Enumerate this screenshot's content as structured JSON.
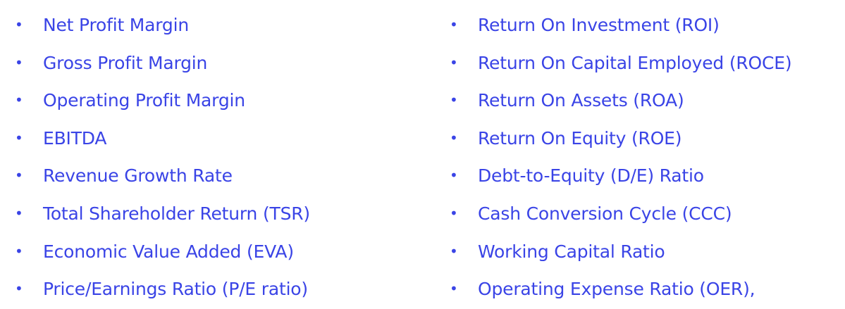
{
  "colors": {
    "text": "#3a44e6",
    "background": "#ffffff"
  },
  "bullet_glyph": "•",
  "left_column": [
    "Net Profit Margin",
    "Gross Profit Margin",
    "Operating Profit Margin",
    "EBITDA",
    "Revenue Growth Rate",
    "Total Shareholder Return (TSR)",
    "Economic Value Added (EVA)",
    "Price/Earnings Ratio (P/E ratio)"
  ],
  "right_column": [
    "Return On Investment (ROI)",
    "Return On Capital Employed (ROCE)",
    "Return On Assets (ROA)",
    "Return On Equity (ROE)",
    "Debt-to-Equity (D/E) Ratio",
    "Cash Conversion Cycle (CCC)",
    "Working Capital Ratio",
    "Operating Expense Ratio (OER),"
  ]
}
